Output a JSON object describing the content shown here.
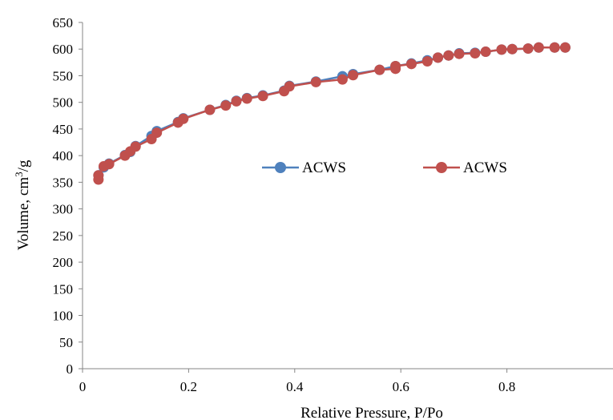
{
  "chart_data": {
    "type": "line",
    "xlabel": "Relative Pressure, P/Po",
    "ylabel": {
      "base": "Volume, cm",
      "sup": "3",
      "tail": "/g"
    },
    "xlim": [
      0,
      1
    ],
    "ylim": [
      0,
      650
    ],
    "x_ticks": [
      0,
      0.2,
      0.4,
      0.6,
      0.8
    ],
    "y_ticks": [
      0,
      50,
      100,
      150,
      200,
      250,
      300,
      350,
      400,
      450,
      500,
      550,
      600,
      650
    ],
    "grid": false,
    "legend_position": "center",
    "series": [
      {
        "name": "ACWS",
        "color": "#4f81bd",
        "marker": "circle",
        "points": [
          [
            0.03,
            363
          ],
          [
            0.04,
            378
          ],
          [
            0.05,
            385
          ],
          [
            0.08,
            401
          ],
          [
            0.09,
            407
          ],
          [
            0.1,
            418
          ],
          [
            0.13,
            437
          ],
          [
            0.14,
            446
          ],
          [
            0.18,
            463
          ],
          [
            0.19,
            470
          ],
          [
            0.24,
            486
          ],
          [
            0.27,
            495
          ],
          [
            0.29,
            503
          ],
          [
            0.31,
            508
          ],
          [
            0.34,
            513
          ],
          [
            0.38,
            522
          ],
          [
            0.39,
            531
          ],
          [
            0.44,
            539
          ],
          [
            0.49,
            549
          ],
          [
            0.51,
            553
          ],
          [
            0.56,
            561
          ],
          [
            0.59,
            568
          ],
          [
            0.62,
            573
          ],
          [
            0.65,
            579
          ],
          [
            0.67,
            584
          ],
          [
            0.69,
            588
          ],
          [
            0.71,
            592
          ],
          [
            0.74,
            593
          ],
          [
            0.76,
            595
          ],
          [
            0.79,
            599
          ],
          [
            0.81,
            600
          ],
          [
            0.84,
            601
          ],
          [
            0.86,
            603
          ],
          [
            0.89,
            603
          ],
          [
            0.91,
            603
          ]
        ]
      },
      {
        "name": "ACWS",
        "color": "#c0504d",
        "marker": "circle",
        "points": [
          [
            0.03,
            355
          ],
          [
            0.03,
            363
          ],
          [
            0.04,
            380
          ],
          [
            0.05,
            384
          ],
          [
            0.08,
            400
          ],
          [
            0.09,
            408
          ],
          [
            0.1,
            417
          ],
          [
            0.13,
            431
          ],
          [
            0.14,
            443
          ],
          [
            0.18,
            462
          ],
          [
            0.19,
            469
          ],
          [
            0.24,
            486
          ],
          [
            0.27,
            494
          ],
          [
            0.29,
            502
          ],
          [
            0.31,
            507
          ],
          [
            0.34,
            512
          ],
          [
            0.38,
            521
          ],
          [
            0.39,
            530
          ],
          [
            0.44,
            538
          ],
          [
            0.49,
            543
          ],
          [
            0.51,
            551
          ],
          [
            0.56,
            561
          ],
          [
            0.59,
            563
          ],
          [
            0.59,
            568
          ],
          [
            0.62,
            572
          ],
          [
            0.65,
            577
          ],
          [
            0.67,
            584
          ],
          [
            0.69,
            588
          ],
          [
            0.71,
            591
          ],
          [
            0.74,
            592
          ],
          [
            0.76,
            595
          ],
          [
            0.79,
            599
          ],
          [
            0.81,
            600
          ],
          [
            0.84,
            601
          ],
          [
            0.86,
            603
          ],
          [
            0.89,
            603
          ],
          [
            0.91,
            603
          ]
        ]
      }
    ]
  }
}
